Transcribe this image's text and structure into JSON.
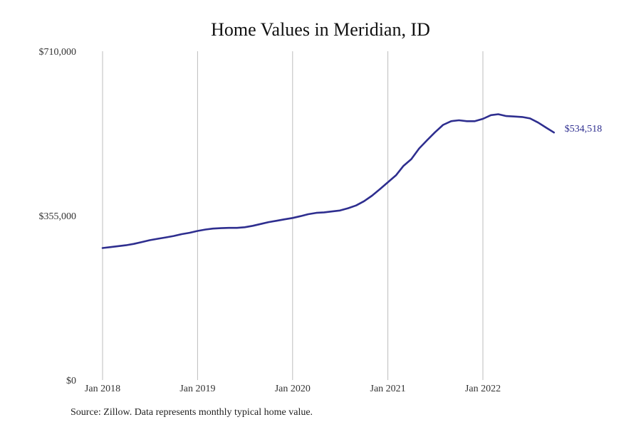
{
  "source_note": "Source: Zillow. Data represents monthly typical home value.",
  "chart_data": {
    "type": "line",
    "title": "Home Values in Meridian, ID",
    "xlabel": "",
    "ylabel": "",
    "ylim": [
      0,
      710000
    ],
    "yticks": [
      0,
      355000,
      710000
    ],
    "ytick_labels": [
      "$0",
      "$355,000",
      "$710,000"
    ],
    "xticks": [
      "2018-01",
      "2019-01",
      "2020-01",
      "2021-01",
      "2022-01"
    ],
    "xtick_labels": [
      "Jan 2018",
      "Jan 2019",
      "Jan 2020",
      "Jan 2021",
      "Jan 2022"
    ],
    "grid": "vertical",
    "line_color": "#2e2e8f",
    "end_label": "$534,518",
    "series": [
      {
        "x": [
          "2018-01",
          "2018-02",
          "2018-03",
          "2018-04",
          "2018-05",
          "2018-06",
          "2018-07",
          "2018-08",
          "2018-09",
          "2018-10",
          "2018-11",
          "2018-12",
          "2019-01",
          "2019-02",
          "2019-03",
          "2019-04",
          "2019-05",
          "2019-06",
          "2019-07",
          "2019-08",
          "2019-09",
          "2019-10",
          "2019-11",
          "2019-12",
          "2020-01",
          "2020-02",
          "2020-03",
          "2020-04",
          "2020-05",
          "2020-06",
          "2020-07",
          "2020-08",
          "2020-09",
          "2020-10",
          "2020-11",
          "2020-12",
          "2021-01",
          "2021-02",
          "2021-03",
          "2021-04",
          "2021-05",
          "2021-06",
          "2021-07",
          "2021-08",
          "2021-09",
          "2021-10",
          "2021-11",
          "2021-12",
          "2022-01",
          "2022-02",
          "2022-03",
          "2022-04",
          "2022-05",
          "2022-06",
          "2022-07",
          "2022-08",
          "2022-09",
          "2022-10"
        ],
        "values": [
          285000,
          287000,
          289000,
          291000,
          294000,
          298000,
          302000,
          305000,
          308000,
          311000,
          315000,
          318000,
          322000,
          325000,
          327000,
          328000,
          328500,
          328500,
          330000,
          333000,
          337000,
          341000,
          344000,
          347000,
          350000,
          354000,
          358000,
          361000,
          362000,
          364000,
          366000,
          371000,
          377000,
          386000,
          398000,
          412000,
          427000,
          442000,
          462000,
          477000,
          500000,
          518000,
          535000,
          551000,
          559000,
          561000,
          559000,
          559000,
          564000,
          572000,
          574000,
          570000,
          569000,
          568000,
          565000,
          556000,
          545000,
          534518
        ]
      }
    ]
  }
}
